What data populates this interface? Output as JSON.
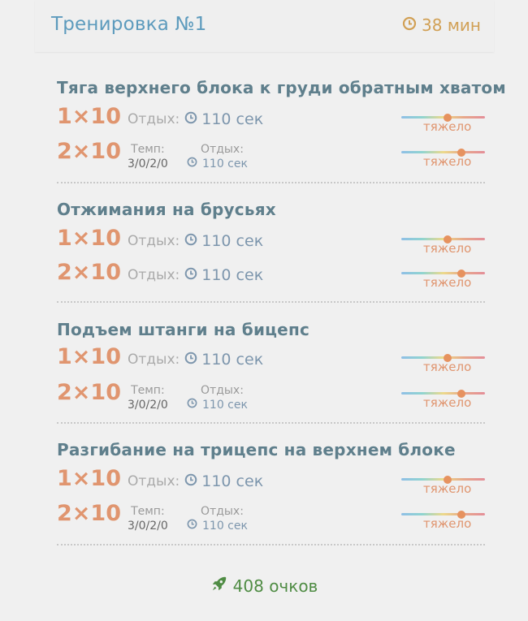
{
  "header": {
    "title": "Тренировка №1",
    "duration": "38 мин"
  },
  "exercises": [
    {
      "name": "Тяга верхнего блока к груди обратным хватом",
      "sets": [
        {
          "reps": "1×10",
          "rest_label": "Отдых:",
          "rest": "110 сек",
          "intensity": "тяжело",
          "level": 0.55
        },
        {
          "reps": "2×10",
          "tempo_label": "Темп:",
          "tempo": "3/0/2/0",
          "rest_label": "Отдых:",
          "rest": "110 сек",
          "intensity": "тяжело",
          "level": 0.72
        }
      ]
    },
    {
      "name": "Отжимания на брусьях",
      "sets": [
        {
          "reps": "1×10",
          "rest_label": "Отдых:",
          "rest": "110 сек",
          "intensity": "тяжело",
          "level": 0.55
        },
        {
          "reps": "2×10",
          "rest_label": "Отдых:",
          "rest": "110 сек",
          "intensity": "тяжело",
          "level": 0.72
        }
      ]
    },
    {
      "name": "Подъем штанги на бицепс",
      "sets": [
        {
          "reps": "1×10",
          "rest_label": "Отдых:",
          "rest": "110 сек",
          "intensity": "тяжело",
          "level": 0.55
        },
        {
          "reps": "2×10",
          "tempo_label": "Темп:",
          "tempo": "3/0/2/0",
          "rest_label": "Отдых:",
          "rest": "110 сек",
          "intensity": "тяжело",
          "level": 0.72
        }
      ]
    },
    {
      "name": "Разгибание на трицепс на верхнем блоке",
      "sets": [
        {
          "reps": "1×10",
          "rest_label": "Отдых:",
          "rest": "110 сек",
          "intensity": "тяжело",
          "level": 0.55
        },
        {
          "reps": "2×10",
          "tempo_label": "Темп:",
          "tempo": "3/0/2/0",
          "rest_label": "Отдых:",
          "rest": "110 сек",
          "intensity": "тяжело",
          "level": 0.72
        }
      ]
    }
  ],
  "footer": {
    "points": "408 очков"
  },
  "icons": {
    "duration": "clock-icon",
    "rest": "clock-icon",
    "footer": "rocket-icon"
  },
  "colors": {
    "title": "#5d9bbd",
    "duration": "#d1a055",
    "exercise_name": "#5f7f8c",
    "reps": "#e0956f",
    "rest_value": "#7d96ad",
    "intensity": "#e0956f",
    "points": "#4f8c44"
  }
}
